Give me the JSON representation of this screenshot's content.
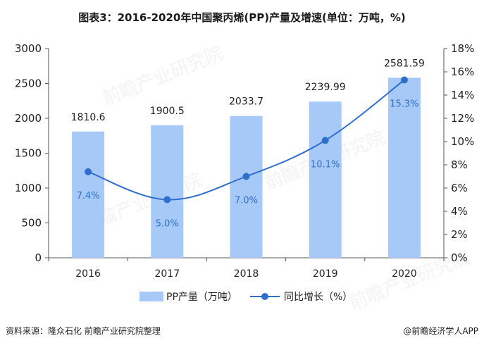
{
  "title": "图表3：2016-2020年中国聚丙烯(PP)产量及增速(单位：万吨，%)",
  "footer": {
    "source": "资料来源：隆众石化 前瞻产业研究院整理",
    "credit": "@前瞻经济学人APP"
  },
  "watermark": "前瞻产业研究院",
  "chart_data": {
    "type": "bar",
    "categories": [
      "2016",
      "2017",
      "2018",
      "2019",
      "2020"
    ],
    "series": [
      {
        "name": "PP产量（万吨）",
        "type": "bar",
        "axis": "left",
        "values": [
          1810.6,
          1900.5,
          2033.7,
          2239.99,
          2581.59
        ],
        "labels": [
          "1810.6",
          "1900.5",
          "2033.7",
          "2239.99",
          "2581.59"
        ],
        "color": "#a6c9f7"
      },
      {
        "name": "同比增长（%）",
        "type": "line",
        "axis": "right",
        "values": [
          7.4,
          5.0,
          7.0,
          10.1,
          15.3
        ],
        "labels": [
          "7.4%",
          "5.0%",
          "7.0%",
          "10.1%",
          "15.3%"
        ],
        "color": "#2e6fce"
      }
    ],
    "y_left": {
      "lim": [
        0,
        3000
      ],
      "ticks": [
        "0",
        "500",
        "1000",
        "1500",
        "2000",
        "2500",
        "3000"
      ]
    },
    "y_right": {
      "lim": [
        0,
        18
      ],
      "ticks": [
        "0%",
        "2%",
        "4%",
        "6%",
        "8%",
        "10%",
        "12%",
        "14%",
        "16%",
        "18%"
      ]
    },
    "grid": false,
    "legend_position": "bottom-center"
  }
}
